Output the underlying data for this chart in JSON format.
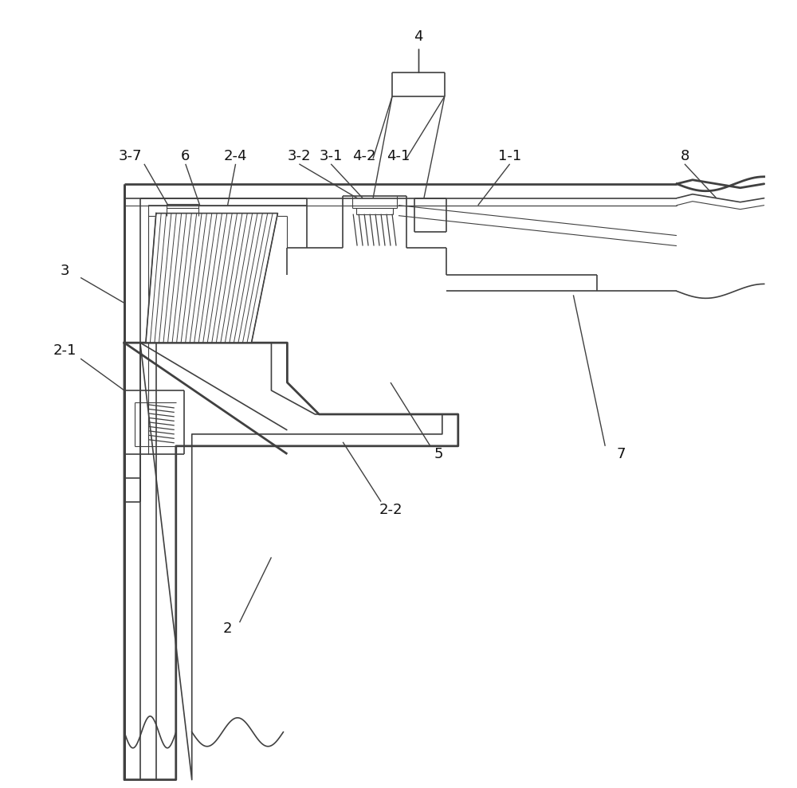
{
  "background_color": "#ffffff",
  "line_color": "#404040",
  "label_color": "#111111",
  "fig_width": 10.0,
  "fig_height": 9.89,
  "lw_outer": 2.0,
  "lw_inner": 1.2,
  "lw_thin": 0.8,
  "lw_leader": 1.0,
  "label_fs": 13
}
